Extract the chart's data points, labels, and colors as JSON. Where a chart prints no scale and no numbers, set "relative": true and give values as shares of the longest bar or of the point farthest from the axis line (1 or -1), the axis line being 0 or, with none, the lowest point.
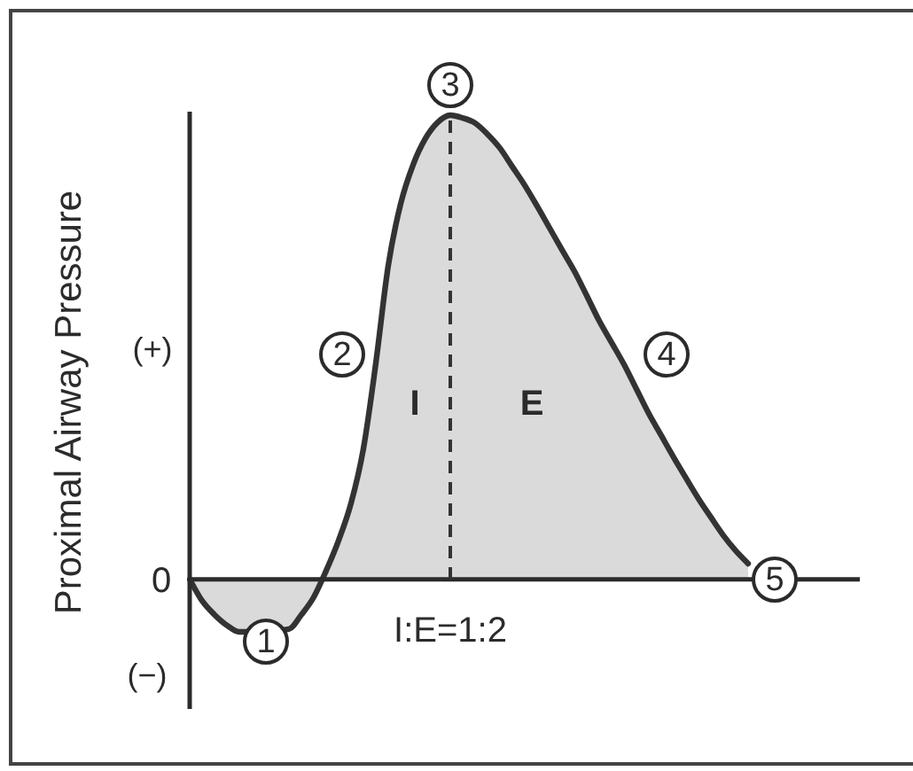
{
  "chart_data": {
    "type": "area",
    "relative": true,
    "ylabel": "Proximal Airway Pressure",
    "categories": [
      null,
      null,
      null,
      null,
      null,
      null,
      null,
      null,
      null,
      null,
      null,
      null,
      null,
      null,
      null,
      null,
      null,
      null,
      null,
      null,
      null,
      null,
      null,
      null,
      null,
      null,
      null,
      null,
      null,
      null,
      null,
      null,
      null,
      null,
      null,
      null,
      null,
      null,
      null,
      null,
      null,
      null,
      null,
      null,
      null,
      null,
      null,
      null,
      null,
      null,
      null,
      null,
      null,
      null,
      null
    ],
    "values": [
      0,
      -0.046,
      -0.076,
      -0.099,
      -0.113,
      null,
      null,
      null,
      -0.107,
      -0.076,
      -0.038,
      0.019,
      0.084,
      0.164,
      0.282,
      0.466,
      0.676,
      0.809,
      0.893,
      0.95,
      0.985,
      1,
      0.994,
      0.983,
      0.959,
      0.929,
      0.889,
      0.849,
      0.804,
      0.757,
      0.71,
      0.664,
      0.611,
      0.557,
      0.51,
      0.463,
      0.41,
      0.357,
      0.31,
      0.263,
      0.218,
      0.174,
      0.134,
      0.095,
      0.062,
      0.034,
      null,
      null,
      null,
      null,
      null,
      null,
      null,
      null,
      null
    ],
    "color": "#333333",
    "marker": "none",
    "line_style": "solid",
    "ref_lines": [
      {
        "axis": "x",
        "color": "#333333",
        "line_style": "dashed"
      }
    ],
    "annotations": [
      "0",
      "(+)",
      "(−)",
      "1",
      "2",
      "3",
      "4",
      "5",
      "I",
      "E",
      "I:E=1:2"
    ]
  }
}
